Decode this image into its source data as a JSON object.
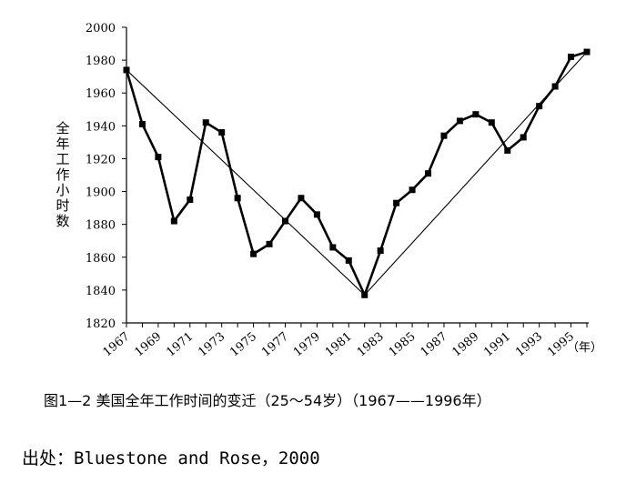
{
  "caption": "图1—2  美国全年工作时间的变迁（25～54岁）（1967——1996年）",
  "source": "出处：Bluestone and Rose，2000",
  "chart_data": {
    "type": "line",
    "ylabel": "全年工作小时数",
    "xunit": "（年）",
    "ylim": [
      1820,
      2000
    ],
    "yticks": [
      1820,
      1840,
      1860,
      1880,
      1900,
      1920,
      1940,
      1960,
      1980,
      2000
    ],
    "xlim": [
      1967,
      1996
    ],
    "xticks": [
      1967,
      1969,
      1971,
      1973,
      1975,
      1977,
      1979,
      1981,
      1983,
      1985,
      1987,
      1989,
      1991,
      1993,
      1995
    ],
    "grid": false,
    "series": [
      {
        "style": "thick-with-square-markers",
        "color": "#000000",
        "x": [
          1967,
          1968,
          1969,
          1970,
          1971,
          1972,
          1973,
          1974,
          1975,
          1976,
          1977,
          1978,
          1979,
          1980,
          1981,
          1982,
          1983,
          1984,
          1985,
          1986,
          1987,
          1988,
          1989,
          1990,
          1991,
          1992,
          1993,
          1994,
          1995,
          1996
        ],
        "y": [
          1974,
          1941,
          1921,
          1882,
          1895,
          1942,
          1936,
          1896,
          1862,
          1868,
          1882,
          1896,
          1886,
          1866,
          1858,
          1837,
          1864,
          1893,
          1901,
          1911,
          1934,
          1943,
          1947,
          1942,
          1925,
          1933,
          1952,
          1964,
          1982,
          1985
        ]
      },
      {
        "style": "thin-trend",
        "color": "#000000",
        "x": [
          1967,
          1982,
          1996
        ],
        "y": [
          1974,
          1837,
          1985
        ]
      }
    ]
  }
}
